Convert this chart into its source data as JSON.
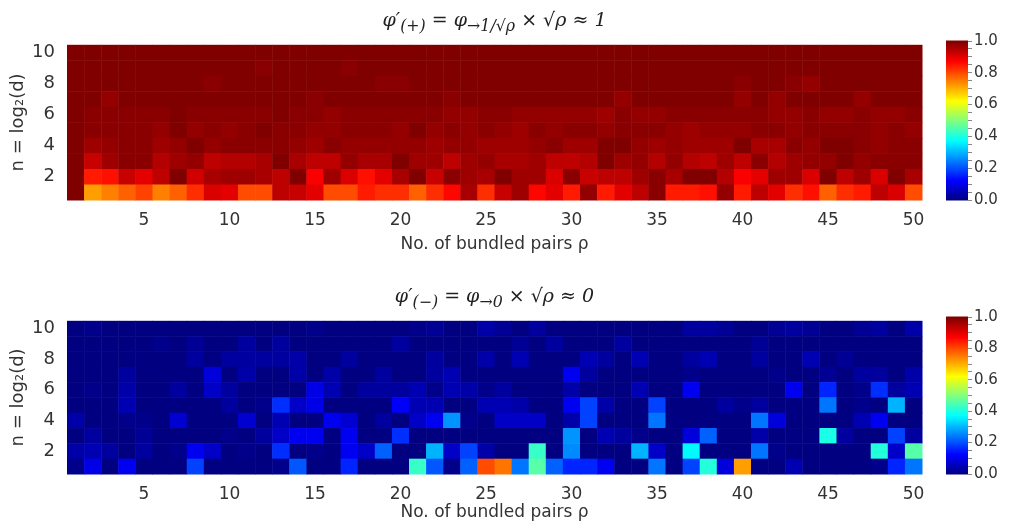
{
  "chart_data": [
    {
      "type": "heatmap",
      "title": "φ′$_{(+)}$ = φ$_{→1/√ρ}$ × √ρ ≈ 1",
      "xlabel": "No. of bundled pairs ρ",
      "ylabel": "n = log₂(d)",
      "categories": [
        null,
        null,
        null,
        null,
        "5",
        null,
        null,
        null,
        null,
        "10",
        null,
        null,
        null,
        null,
        "15",
        null,
        null,
        null,
        null,
        "20",
        null,
        null,
        null,
        null,
        "25",
        null,
        null,
        null,
        null,
        "30",
        null,
        null,
        null,
        null,
        "35",
        null,
        null,
        null,
        null,
        "40",
        null,
        null,
        null,
        null,
        "45",
        null,
        null,
        null,
        null,
        "50"
      ],
      "y_categories": [
        "10",
        null,
        "8",
        null,
        "6",
        null,
        "4",
        null,
        "2",
        null
      ],
      "clim": [
        0,
        1
      ],
      "cticks": [
        {
          "value": 0,
          "label": "0.0"
        },
        {
          "value": 0.05,
          "label": null
        },
        {
          "value": 0.1,
          "label": null
        },
        {
          "value": 0.15,
          "label": null
        },
        {
          "value": 0.2,
          "label": "0.2"
        },
        {
          "value": 0.25,
          "label": null
        },
        {
          "value": 0.3,
          "label": null
        },
        {
          "value": 0.35,
          "label": null
        },
        {
          "value": 0.4,
          "label": "0.4"
        },
        {
          "value": 0.45,
          "label": null
        },
        {
          "value": 0.5,
          "label": null
        },
        {
          "value": 0.55,
          "label": null
        },
        {
          "value": 0.6,
          "label": "0.6"
        },
        {
          "value": 0.65,
          "label": null
        },
        {
          "value": 0.7,
          "label": null
        },
        {
          "value": 0.75,
          "label": null
        },
        {
          "value": 0.8,
          "label": "0.8"
        },
        {
          "value": 0.85,
          "label": null
        },
        {
          "value": 0.9,
          "label": null
        },
        {
          "value": 0.95,
          "label": null
        },
        {
          "value": 1,
          "label": "1.0"
        }
      ],
      "cells": [
        [
          1,
          1,
          1,
          1,
          1,
          1,
          1,
          1,
          1,
          1,
          1,
          1,
          1,
          1,
          1,
          1,
          1,
          1,
          1,
          1,
          1,
          1,
          1,
          1,
          1,
          1,
          1,
          1,
          1,
          1,
          1,
          1,
          1,
          1,
          1,
          1,
          1,
          1,
          1,
          1,
          1,
          1,
          1,
          1,
          1,
          1,
          1,
          1,
          1,
          1
        ],
        [
          1,
          1,
          1,
          1,
          1,
          1,
          1,
          1,
          1,
          1,
          1,
          0.99,
          1,
          1,
          1,
          1,
          0.99,
          1,
          1,
          1,
          1,
          1,
          1,
          1,
          1,
          1,
          1,
          1,
          1,
          1,
          1,
          1,
          1,
          1,
          1,
          1,
          1,
          1,
          1,
          1,
          1,
          1,
          1,
          1,
          1,
          1,
          1,
          1,
          1,
          1
        ],
        [
          1,
          1,
          1,
          1,
          1,
          1,
          1,
          1,
          0.99,
          1,
          1,
          1,
          1,
          1,
          1,
          1,
          1,
          1,
          0.99,
          0.99,
          1,
          1,
          1,
          1,
          1,
          1,
          1,
          1,
          1,
          1,
          1,
          1,
          1,
          1,
          1,
          1,
          1,
          1,
          1,
          0.99,
          1,
          1,
          0.99,
          0.98,
          1,
          1,
          1,
          1,
          1,
          1
        ],
        [
          1,
          1,
          0.98,
          1,
          1,
          1,
          1,
          1,
          1,
          1,
          1,
          1,
          1,
          1,
          0.99,
          1,
          1,
          1,
          1,
          1,
          1,
          1,
          0.99,
          1,
          1,
          1,
          1,
          1,
          1,
          1,
          1,
          1,
          0.98,
          1,
          1,
          1,
          1,
          1,
          1,
          0.98,
          1,
          0.98,
          1,
          1,
          1,
          1,
          0.98,
          1,
          1,
          1
        ],
        [
          1,
          0.99,
          0.99,
          0.99,
          0.99,
          0.99,
          1,
          0.99,
          0.99,
          0.99,
          0.99,
          0.99,
          1,
          0.99,
          0.99,
          0.98,
          0.99,
          0.99,
          0.99,
          0.99,
          0.99,
          0.99,
          0.98,
          0.98,
          0.99,
          0.99,
          0.98,
          0.98,
          0.98,
          0.98,
          0.98,
          0.97,
          0.99,
          0.98,
          0.98,
          0.99,
          0.99,
          0.99,
          0.99,
          0.99,
          0.99,
          0.98,
          0.98,
          0.99,
          0.98,
          0.98,
          0.99,
          0.98,
          0.98,
          0.99
        ],
        [
          1,
          0.99,
          0.99,
          0.99,
          0.99,
          0.98,
          1,
          0.98,
          0.99,
          0.98,
          0.99,
          1,
          0.99,
          0.99,
          0.98,
          0.98,
          0.99,
          0.99,
          0.99,
          0.98,
          1,
          0.98,
          0.99,
          0.98,
          0.99,
          0.98,
          0.97,
          0.99,
          0.98,
          0.99,
          0.99,
          0.98,
          0.99,
          0.99,
          0.99,
          0.98,
          0.97,
          0.98,
          0.98,
          0.98,
          0.99,
          0.99,
          0.98,
          0.99,
          0.99,
          0.99,
          0.99,
          0.98,
          0.99,
          0.98
        ],
        [
          1,
          0.97,
          0.98,
          0.99,
          0.99,
          0.97,
          0.98,
          1,
          0.98,
          0.99,
          0.99,
          0.99,
          0.99,
          0.98,
          0.97,
          0.99,
          0.98,
          0.98,
          0.98,
          0.98,
          0.98,
          0.97,
          0.98,
          0.98,
          0.97,
          0.97,
          0.97,
          0.98,
          0.99,
          0.97,
          0.97,
          1,
          1,
          0.98,
          0.97,
          0.98,
          0.97,
          0.97,
          0.97,
          1,
          0.96,
          0.96,
          0.99,
          0.98,
          1,
          1,
          0.99,
          0.98,
          0.99,
          0.99
        ],
        [
          1,
          0.93,
          0.97,
          0.99,
          0.99,
          0.95,
          0.97,
          0.98,
          0.94,
          0.95,
          0.95,
          0.96,
          1,
          0.96,
          0.94,
          0.94,
          0.98,
          0.96,
          0.96,
          1,
          0.97,
          0.97,
          0.94,
          0.97,
          0.98,
          0.96,
          0.96,
          0.97,
          0.94,
          0.94,
          0.95,
          1,
          0.97,
          0.98,
          0.95,
          0.98,
          0.95,
          0.94,
          0.97,
          0.94,
          0.99,
          0.95,
          0.97,
          0.98,
          0.98,
          1,
          0.98,
          0.99,
          0.99,
          0.99
        ],
        [
          1,
          0.85,
          0.86,
          0.93,
          0.9,
          0.94,
          1,
          0.92,
          0.96,
          0.97,
          0.97,
          0.96,
          0.94,
          1,
          0.88,
          0.97,
          0.91,
          0.86,
          0.9,
          0.96,
          1,
          0.93,
          0.99,
          0.97,
          0.96,
          1,
          0.97,
          0.97,
          0.91,
          0.99,
          0.93,
          0.94,
          0.94,
          0.97,
          0.99,
          0.96,
          1,
          1,
          0.95,
          0.88,
          0.9,
          0.97,
          0.97,
          0.91,
          1,
          0.94,
          0.97,
          0.91,
          1,
          0.96
        ],
        [
          1,
          0.72,
          0.75,
          0.78,
          0.81,
          0.75,
          0.78,
          0.83,
          0.91,
          0.9,
          0.8,
          0.8,
          0.94,
          0.93,
          0.9,
          0.8,
          0.8,
          0.85,
          0.83,
          0.83,
          0.78,
          0.83,
          0.87,
          0.96,
          0.83,
          0.93,
          0.97,
          0.87,
          0.9,
          0.85,
          0.98,
          0.85,
          0.9,
          0.94,
          0.99,
          0.85,
          0.85,
          0.86,
          0.98,
          0.85,
          0.94,
          0.9,
          0.83,
          0.86,
          0.78,
          0.83,
          0.85,
          0.94,
          0.91,
          0.8
        ]
      ]
    },
    {
      "type": "heatmap",
      "title": "φ′$_{(−)}$ = φ$_{→0}$ × √ρ ≈ 0",
      "xlabel": "No. of bundled pairs ρ",
      "ylabel": "n = log₂(d)",
      "categories": [
        null,
        null,
        null,
        null,
        "5",
        null,
        null,
        null,
        null,
        "10",
        null,
        null,
        null,
        null,
        "15",
        null,
        null,
        null,
        null,
        "20",
        null,
        null,
        null,
        null,
        "25",
        null,
        null,
        null,
        null,
        "30",
        null,
        null,
        null,
        null,
        "35",
        null,
        null,
        null,
        null,
        "40",
        null,
        null,
        null,
        null,
        "45",
        null,
        null,
        null,
        null,
        "50"
      ],
      "y_categories": [
        "10",
        null,
        "8",
        null,
        "6",
        null,
        "4",
        null,
        "2",
        null
      ],
      "clim": [
        0,
        1
      ],
      "cticks": [
        {
          "value": 0,
          "label": "0.0"
        },
        {
          "value": 0.05,
          "label": null
        },
        {
          "value": 0.1,
          "label": null
        },
        {
          "value": 0.15,
          "label": null
        },
        {
          "value": 0.2,
          "label": "0.2"
        },
        {
          "value": 0.25,
          "label": null
        },
        {
          "value": 0.3,
          "label": null
        },
        {
          "value": 0.35,
          "label": null
        },
        {
          "value": 0.4,
          "label": "0.4"
        },
        {
          "value": 0.45,
          "label": null
        },
        {
          "value": 0.5,
          "label": null
        },
        {
          "value": 0.55,
          "label": null
        },
        {
          "value": 0.6,
          "label": "0.6"
        },
        {
          "value": 0.65,
          "label": null
        },
        {
          "value": 0.7,
          "label": null
        },
        {
          "value": 0.75,
          "label": null
        },
        {
          "value": 0.8,
          "label": "0.8"
        },
        {
          "value": 0.85,
          "label": null
        },
        {
          "value": 0.9,
          "label": null
        },
        {
          "value": 0.95,
          "label": null
        },
        {
          "value": 1,
          "label": "1.0"
        }
      ],
      "cells": [
        [
          0,
          0.01,
          0,
          0,
          0,
          0,
          0,
          0,
          0,
          0,
          0,
          0,
          0,
          0,
          0.01,
          0,
          0,
          0,
          0,
          0,
          0.01,
          0.02,
          0,
          0,
          0.04,
          0.02,
          0,
          0.03,
          0,
          0,
          0,
          0,
          0,
          0,
          0,
          0,
          0.03,
          0.03,
          0.02,
          0,
          0,
          0.02,
          0.03,
          0.02,
          0,
          0,
          0.02,
          0.03,
          0,
          0.04
        ],
        [
          0,
          0,
          0,
          0,
          0,
          0.01,
          0,
          0.02,
          0,
          0,
          0.03,
          0,
          0.03,
          0,
          0,
          0,
          0,
          0,
          0,
          0.03,
          0,
          0,
          0,
          0,
          0,
          0,
          0.02,
          0,
          0.03,
          0,
          0,
          0,
          0.03,
          0,
          0,
          0,
          0,
          0,
          0,
          0,
          0.02,
          0,
          0,
          0,
          0,
          0,
          0,
          0,
          0,
          0
        ],
        [
          0,
          0,
          0,
          0,
          0,
          0,
          0,
          0.03,
          0,
          0.03,
          0.03,
          0.03,
          0.03,
          0.04,
          0,
          0,
          0.03,
          0,
          0,
          0,
          0,
          0.03,
          0,
          0,
          0.04,
          0,
          0.05,
          0,
          0,
          0,
          0.05,
          0.03,
          0,
          0.05,
          0,
          0,
          0.03,
          0.05,
          0,
          0,
          0.03,
          0,
          0,
          0.05,
          0,
          0.02,
          0,
          0,
          0,
          0
        ],
        [
          0,
          0,
          0,
          0.03,
          0,
          0,
          0,
          0,
          0.09,
          0,
          0.04,
          0,
          0,
          0.04,
          0,
          0.04,
          0,
          0,
          0.03,
          0,
          0,
          0.03,
          0.05,
          0,
          0,
          0,
          0,
          0,
          0,
          0.11,
          0.03,
          0,
          0,
          0,
          0,
          0,
          0.01,
          0,
          0,
          0,
          0,
          0.01,
          0,
          0,
          0.02,
          0,
          0.03,
          0.03,
          0,
          0.04
        ],
        [
          0,
          0.01,
          0,
          0.04,
          0,
          0,
          0.03,
          0,
          0.07,
          0.03,
          0,
          0,
          0,
          0,
          0.1,
          0.05,
          0,
          0.03,
          0.03,
          0.03,
          0.05,
          0.01,
          0.05,
          0.04,
          0.01,
          0.03,
          0,
          0,
          0,
          0.04,
          0,
          0,
          0,
          0.05,
          0,
          0,
          0.11,
          0,
          0,
          0,
          0,
          0,
          0.11,
          0,
          0.16,
          0,
          0.01,
          0.17,
          0.03,
          0.05
        ],
        [
          0,
          0,
          0,
          0.05,
          0,
          0,
          0,
          0,
          0,
          0.03,
          0,
          0.01,
          0.17,
          0.07,
          0.1,
          0,
          0,
          0,
          0,
          0.12,
          0.05,
          0.05,
          0,
          0,
          0.05,
          0.05,
          0.04,
          0,
          0,
          0.11,
          0.19,
          0.04,
          0,
          0,
          0.19,
          0,
          0,
          0,
          0.03,
          0.01,
          0.03,
          0,
          0,
          0,
          0.24,
          0,
          0.01,
          0,
          0.3,
          0
        ],
        [
          0.04,
          0,
          0,
          0.01,
          0.01,
          0,
          0.08,
          0,
          0,
          0,
          0.08,
          0,
          0.05,
          0,
          0,
          0.11,
          0.08,
          0,
          0.03,
          0,
          0.07,
          0.11,
          0.27,
          0.01,
          0,
          0.07,
          0.07,
          0.07,
          0,
          0.04,
          0.19,
          0,
          0,
          0,
          0.24,
          0,
          0,
          0,
          0,
          0,
          0.24,
          0.09,
          0,
          0,
          0,
          0,
          0.05,
          0.11,
          0,
          0
        ],
        [
          0,
          0.03,
          0,
          0,
          0.02,
          0,
          0,
          0,
          0,
          0.01,
          0,
          0.03,
          0.07,
          0.11,
          0.11,
          0,
          0.11,
          0,
          0,
          0.17,
          0,
          0,
          0,
          0,
          0,
          0,
          0,
          0,
          0,
          0.27,
          0,
          0.05,
          0.03,
          0.01,
          0,
          0,
          0.09,
          0.22,
          0,
          0,
          0.04,
          0,
          0,
          0,
          0.4,
          0.03,
          0,
          0,
          0.19,
          0.03
        ],
        [
          0.04,
          0.05,
          0.03,
          0,
          0.03,
          0,
          0.01,
          0.11,
          0.07,
          0,
          0.01,
          0,
          0.17,
          0,
          0.01,
          0,
          0.11,
          0.07,
          0.22,
          0,
          0,
          0.3,
          0.07,
          0.19,
          0.04,
          0,
          0,
          0.43,
          0,
          0.26,
          0,
          0,
          0,
          0.3,
          0.07,
          0,
          0.37,
          0,
          0,
          0,
          0.24,
          0.01,
          0,
          0,
          0,
          0,
          0,
          0.41,
          0.07,
          0.46
        ],
        [
          0.01,
          0.1,
          0,
          0.11,
          0,
          0,
          0,
          0.19,
          0,
          0,
          0,
          0,
          0.01,
          0.21,
          0,
          0,
          0.16,
          0,
          0,
          0,
          0.43,
          0.21,
          0.01,
          0.22,
          0.8,
          0.76,
          0.24,
          0.46,
          0.22,
          0.16,
          0.16,
          0.11,
          0,
          0,
          0.24,
          0,
          0.19,
          0.41,
          0.09,
          0.72,
          0,
          0,
          0.05,
          0,
          0,
          0,
          0,
          0.01,
          0.16,
          0.24
        ]
      ]
    }
  ]
}
